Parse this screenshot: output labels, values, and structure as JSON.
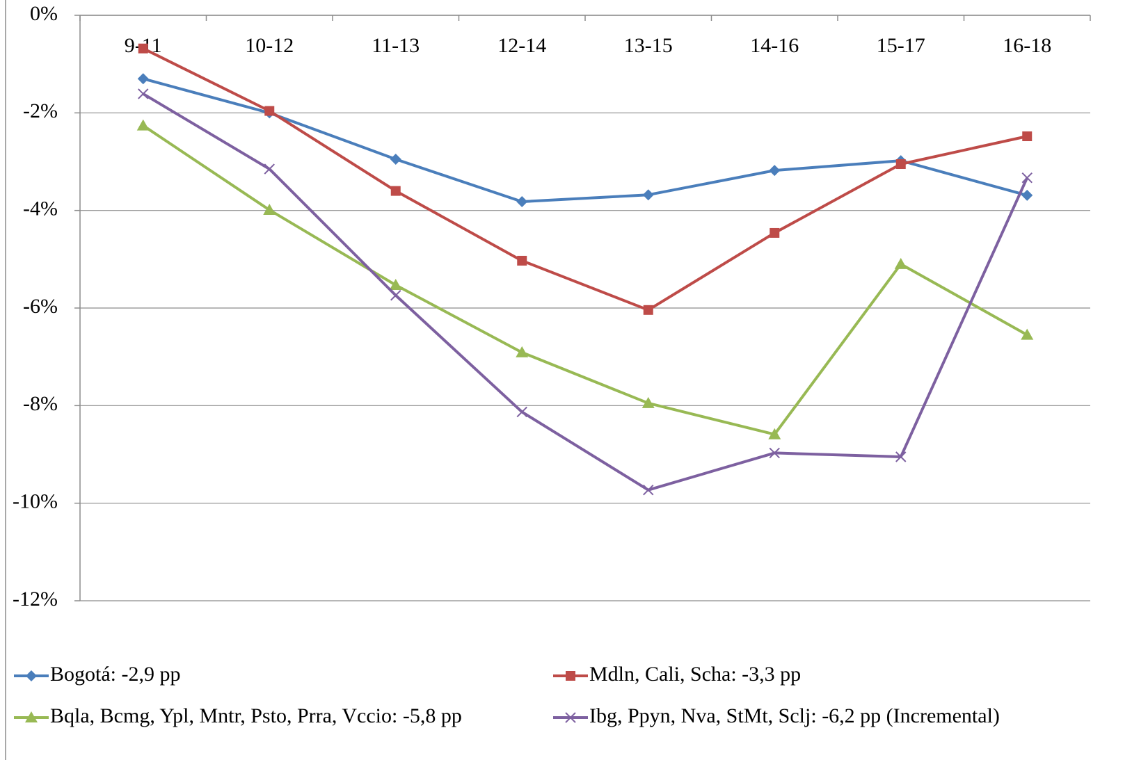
{
  "chart_data": {
    "type": "line",
    "categories": [
      "9-11",
      "10-12",
      "11-13",
      "12-14",
      "13-15",
      "14-16",
      "15-17",
      "16-18"
    ],
    "series": [
      {
        "name": "Bogotá: -2,9 pp",
        "color": "#4a7ebb",
        "marker": "diamond",
        "values": [
          -1.3,
          -2.0,
          -2.95,
          -3.82,
          -3.68,
          -3.18,
          -2.98,
          -3.69
        ]
      },
      {
        "name": "Mdln, Cali, Scha: -3,3 pp",
        "color": "#be4b48",
        "marker": "square",
        "values": [
          -0.68,
          -1.96,
          -3.6,
          -5.03,
          -6.04,
          -4.46,
          -3.05,
          -2.48
        ]
      },
      {
        "name": "Bqla, Bcmg, Ypl, Mntr, Psto, Prra, Vccio: -5,8 pp",
        "color": "#98b954",
        "marker": "triangle",
        "values": [
          -2.26,
          -3.99,
          -5.53,
          -6.91,
          -7.95,
          -8.59,
          -5.1,
          -6.55
        ]
      },
      {
        "name": "Ibg, Ppyn, Nva, StMt, Sclj: -6,2 pp (Incremental)",
        "color": "#7d60a0",
        "marker": "x",
        "values": [
          -1.61,
          -3.15,
          -5.74,
          -8.13,
          -9.73,
          -8.97,
          -9.05,
          -3.33
        ]
      }
    ],
    "ylim": [
      -12,
      0
    ],
    "yticks": [
      {
        "value": 0,
        "label": "0%"
      },
      {
        "value": -2,
        "label": "-2%"
      },
      {
        "value": -4,
        "label": "-4%"
      },
      {
        "value": -6,
        "label": "-6%"
      },
      {
        "value": -8,
        "label": "-8%"
      },
      {
        "value": -10,
        "label": "-10%"
      },
      {
        "value": -12,
        "label": "-12%"
      }
    ],
    "grid": true,
    "legend": "bottom"
  }
}
